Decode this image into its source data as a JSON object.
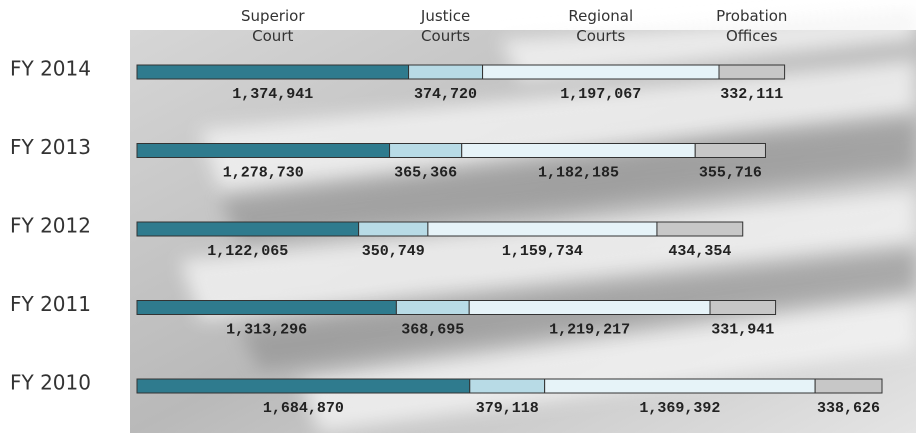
{
  "chart_data": {
    "type": "bar",
    "orientation": "horizontal",
    "stacked": true,
    "categories": [
      "FY 2014",
      "FY 2013",
      "FY 2012",
      "FY 2011",
      "FY 2010"
    ],
    "series": [
      {
        "name": "Superior Court",
        "color": "#2f7b8e",
        "values": [
          1374941,
          1278730,
          1122065,
          1313296,
          1684870
        ],
        "value_labels": [
          "1,374,941",
          "1,278,730",
          "1,122,065",
          "1,313,296",
          "1,684,870"
        ]
      },
      {
        "name": "Justice Courts",
        "color": "#b8dbe6",
        "values": [
          374720,
          365366,
          350749,
          368695,
          379118
        ],
        "value_labels": [
          "374,720",
          "365,366",
          "350,749",
          "368,695",
          "379,118"
        ]
      },
      {
        "name": "Regional Courts",
        "color": "#e6f3f8",
        "values": [
          1197067,
          1182185,
          1159734,
          1219217,
          1369392
        ],
        "value_labels": [
          "1,197,067",
          "1,182,185",
          "1,159,734",
          "1,219,217",
          "1,369,392"
        ]
      },
      {
        "name": "Probation Offices",
        "color": "#c7c7c7",
        "values": [
          332111,
          355716,
          434354,
          331941,
          338626
        ],
        "value_labels": [
          "332,111",
          "355,716",
          "434,354",
          "331,941",
          "338,626"
        ]
      }
    ]
  }
}
